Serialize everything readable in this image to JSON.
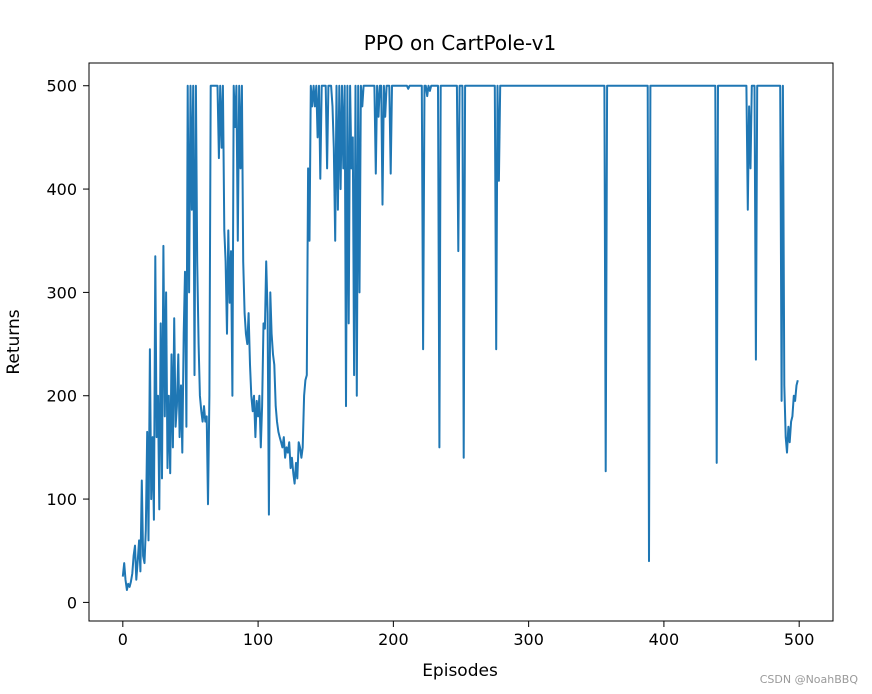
{
  "chart_data": {
    "type": "line",
    "title": "PPO on CartPole-v1",
    "xlabel": "Episodes",
    "ylabel": "Returns",
    "xlim": [
      -25,
      525
    ],
    "ylim": [
      -18,
      522
    ],
    "xticks": [
      0,
      100,
      200,
      300,
      400,
      500
    ],
    "yticks": [
      0,
      100,
      200,
      300,
      400,
      500
    ],
    "grid": false,
    "series": [
      {
        "color": "#1f77b4",
        "points": [
          [
            0,
            25
          ],
          [
            1,
            38
          ],
          [
            2,
            22
          ],
          [
            3,
            12
          ],
          [
            4,
            18
          ],
          [
            5,
            15
          ],
          [
            6,
            20
          ],
          [
            7,
            28
          ],
          [
            8,
            45
          ],
          [
            9,
            55
          ],
          [
            10,
            22
          ],
          [
            11,
            40
          ],
          [
            12,
            60
          ],
          [
            13,
            30
          ],
          [
            14,
            118
          ],
          [
            15,
            45
          ],
          [
            16,
            38
          ],
          [
            17,
            70
          ],
          [
            18,
            165
          ],
          [
            19,
            60
          ],
          [
            20,
            245
          ],
          [
            21,
            100
          ],
          [
            22,
            160
          ],
          [
            23,
            80
          ],
          [
            24,
            335
          ],
          [
            25,
            160
          ],
          [
            26,
            200
          ],
          [
            27,
            90
          ],
          [
            28,
            270
          ],
          [
            29,
            120
          ],
          [
            30,
            345
          ],
          [
            31,
            180
          ],
          [
            32,
            300
          ],
          [
            33,
            130
          ],
          [
            34,
            200
          ],
          [
            35,
            125
          ],
          [
            36,
            240
          ],
          [
            37,
            150
          ],
          [
            38,
            275
          ],
          [
            39,
            170
          ],
          [
            40,
            190
          ],
          [
            41,
            240
          ],
          [
            42,
            160
          ],
          [
            43,
            210
          ],
          [
            44,
            145
          ],
          [
            45,
            260
          ],
          [
            46,
            320
          ],
          [
            47,
            170
          ],
          [
            48,
            500
          ],
          [
            49,
            300
          ],
          [
            50,
            500
          ],
          [
            51,
            380
          ],
          [
            52,
            500
          ],
          [
            53,
            220
          ],
          [
            54,
            500
          ],
          [
            55,
            330
          ],
          [
            56,
            250
          ],
          [
            57,
            200
          ],
          [
            58,
            185
          ],
          [
            59,
            175
          ],
          [
            60,
            190
          ],
          [
            61,
            175
          ],
          [
            62,
            180
          ],
          [
            63,
            95
          ],
          [
            64,
            200
          ],
          [
            65,
            500
          ],
          [
            66,
            500
          ],
          [
            67,
            500
          ],
          [
            68,
            500
          ],
          [
            69,
            500
          ],
          [
            70,
            500
          ],
          [
            71,
            430
          ],
          [
            72,
            500
          ],
          [
            73,
            440
          ],
          [
            74,
            500
          ],
          [
            75,
            360
          ],
          [
            76,
            330
          ],
          [
            77,
            260
          ],
          [
            78,
            360
          ],
          [
            79,
            290
          ],
          [
            80,
            340
          ],
          [
            81,
            200
          ],
          [
            82,
            500
          ],
          [
            83,
            460
          ],
          [
            84,
            500
          ],
          [
            85,
            350
          ],
          [
            86,
            500
          ],
          [
            87,
            420
          ],
          [
            88,
            500
          ],
          [
            89,
            330
          ],
          [
            90,
            280
          ],
          [
            91,
            260
          ],
          [
            92,
            250
          ],
          [
            93,
            280
          ],
          [
            94,
            230
          ],
          [
            95,
            200
          ],
          [
            96,
            185
          ],
          [
            97,
            200
          ],
          [
            98,
            160
          ],
          [
            99,
            195
          ],
          [
            100,
            180
          ],
          [
            101,
            200
          ],
          [
            102,
            150
          ],
          [
            103,
            190
          ],
          [
            104,
            270
          ],
          [
            105,
            265
          ],
          [
            106,
            330
          ],
          [
            107,
            280
          ],
          [
            108,
            85
          ],
          [
            109,
            300
          ],
          [
            110,
            260
          ],
          [
            111,
            240
          ],
          [
            112,
            230
          ],
          [
            113,
            190
          ],
          [
            114,
            175
          ],
          [
            115,
            165
          ],
          [
            116,
            160
          ],
          [
            117,
            155
          ],
          [
            118,
            150
          ],
          [
            119,
            160
          ],
          [
            120,
            140
          ],
          [
            121,
            150
          ],
          [
            122,
            145
          ],
          [
            123,
            155
          ],
          [
            124,
            130
          ],
          [
            125,
            140
          ],
          [
            126,
            125
          ],
          [
            127,
            115
          ],
          [
            128,
            135
          ],
          [
            129,
            120
          ],
          [
            130,
            155
          ],
          [
            131,
            150
          ],
          [
            132,
            140
          ],
          [
            133,
            150
          ],
          [
            134,
            200
          ],
          [
            135,
            215
          ],
          [
            136,
            220
          ],
          [
            137,
            420
          ],
          [
            138,
            350
          ],
          [
            139,
            500
          ],
          [
            140,
            480
          ],
          [
            141,
            500
          ],
          [
            142,
            480
          ],
          [
            143,
            500
          ],
          [
            144,
            450
          ],
          [
            145,
            500
          ],
          [
            146,
            410
          ],
          [
            147,
            500
          ],
          [
            148,
            500
          ],
          [
            149,
            500
          ],
          [
            150,
            500
          ],
          [
            151,
            420
          ],
          [
            152,
            500
          ],
          [
            153,
            500
          ],
          [
            154,
            500
          ],
          [
            155,
            480
          ],
          [
            156,
            440
          ],
          [
            157,
            350
          ],
          [
            158,
            500
          ],
          [
            159,
            380
          ],
          [
            160,
            500
          ],
          [
            161,
            400
          ],
          [
            162,
            500
          ],
          [
            163,
            420
          ],
          [
            164,
            500
          ],
          [
            165,
            190
          ],
          [
            166,
            500
          ],
          [
            167,
            270
          ],
          [
            168,
            500
          ],
          [
            169,
            420
          ],
          [
            170,
            450
          ],
          [
            171,
            220
          ],
          [
            172,
            500
          ],
          [
            173,
            200
          ],
          [
            174,
            500
          ],
          [
            175,
            300
          ],
          [
            176,
            500
          ],
          [
            177,
            480
          ],
          [
            178,
            500
          ],
          [
            179,
            500
          ],
          [
            180,
            500
          ],
          [
            181,
            500
          ],
          [
            182,
            500
          ],
          [
            183,
            500
          ],
          [
            184,
            500
          ],
          [
            185,
            500
          ],
          [
            186,
            500
          ],
          [
            187,
            415
          ],
          [
            188,
            500
          ],
          [
            189,
            470
          ],
          [
            190,
            500
          ],
          [
            191,
            500
          ],
          [
            192,
            385
          ],
          [
            193,
            500
          ],
          [
            194,
            470
          ],
          [
            195,
            500
          ],
          [
            196,
            500
          ],
          [
            197,
            500
          ],
          [
            198,
            415
          ],
          [
            199,
            500
          ],
          [
            200,
            500
          ],
          [
            202,
            500
          ],
          [
            204,
            500
          ],
          [
            206,
            500
          ],
          [
            208,
            500
          ],
          [
            210,
            500
          ],
          [
            211,
            497
          ],
          [
            212,
            500
          ],
          [
            214,
            500
          ],
          [
            216,
            500
          ],
          [
            218,
            500
          ],
          [
            220,
            500
          ],
          [
            221,
            500
          ],
          [
            222,
            245
          ],
          [
            223,
            500
          ],
          [
            224,
            500
          ],
          [
            225,
            490
          ],
          [
            226,
            500
          ],
          [
            227,
            495
          ],
          [
            228,
            500
          ],
          [
            230,
            500
          ],
          [
            232,
            500
          ],
          [
            233,
            500
          ],
          [
            234,
            150
          ],
          [
            235,
            500
          ],
          [
            236,
            500
          ],
          [
            238,
            500
          ],
          [
            240,
            500
          ],
          [
            242,
            500
          ],
          [
            244,
            500
          ],
          [
            246,
            500
          ],
          [
            247,
            500
          ],
          [
            248,
            340
          ],
          [
            249,
            500
          ],
          [
            250,
            500
          ],
          [
            251,
            500
          ],
          [
            252,
            140
          ],
          [
            253,
            500
          ],
          [
            254,
            500
          ],
          [
            256,
            500
          ],
          [
            258,
            500
          ],
          [
            260,
            500
          ],
          [
            262,
            500
          ],
          [
            264,
            500
          ],
          [
            266,
            500
          ],
          [
            268,
            500
          ],
          [
            270,
            500
          ],
          [
            272,
            500
          ],
          [
            274,
            500
          ],
          [
            275,
            500
          ],
          [
            276,
            245
          ],
          [
            277,
            500
          ],
          [
            278,
            408
          ],
          [
            279,
            500
          ],
          [
            280,
            500
          ],
          [
            285,
            500
          ],
          [
            290,
            500
          ],
          [
            295,
            500
          ],
          [
            300,
            500
          ],
          [
            305,
            500
          ],
          [
            310,
            500
          ],
          [
            315,
            500
          ],
          [
            320,
            500
          ],
          [
            325,
            500
          ],
          [
            330,
            500
          ],
          [
            335,
            500
          ],
          [
            340,
            500
          ],
          [
            345,
            500
          ],
          [
            350,
            500
          ],
          [
            355,
            500
          ],
          [
            356,
            500
          ],
          [
            357,
            127
          ],
          [
            358,
            500
          ],
          [
            360,
            500
          ],
          [
            365,
            500
          ],
          [
            370,
            500
          ],
          [
            375,
            500
          ],
          [
            380,
            500
          ],
          [
            385,
            500
          ],
          [
            388,
            500
          ],
          [
            389,
            40
          ],
          [
            390,
            500
          ],
          [
            395,
            500
          ],
          [
            400,
            500
          ],
          [
            405,
            500
          ],
          [
            410,
            500
          ],
          [
            415,
            500
          ],
          [
            420,
            500
          ],
          [
            425,
            500
          ],
          [
            430,
            500
          ],
          [
            435,
            500
          ],
          [
            438,
            500
          ],
          [
            439,
            135
          ],
          [
            440,
            500
          ],
          [
            445,
            500
          ],
          [
            450,
            500
          ],
          [
            455,
            500
          ],
          [
            460,
            500
          ],
          [
            461,
            500
          ],
          [
            462,
            380
          ],
          [
            463,
            480
          ],
          [
            464,
            420
          ],
          [
            465,
            500
          ],
          [
            466,
            500
          ],
          [
            467,
            500
          ],
          [
            468,
            235
          ],
          [
            469,
            500
          ],
          [
            470,
            500
          ],
          [
            472,
            500
          ],
          [
            474,
            500
          ],
          [
            476,
            500
          ],
          [
            478,
            500
          ],
          [
            480,
            500
          ],
          [
            482,
            500
          ],
          [
            484,
            500
          ],
          [
            485,
            500
          ],
          [
            486,
            500
          ],
          [
            487,
            195
          ],
          [
            488,
            500
          ],
          [
            489,
            210
          ],
          [
            490,
            160
          ],
          [
            491,
            145
          ],
          [
            492,
            170
          ],
          [
            493,
            155
          ],
          [
            494,
            175
          ],
          [
            495,
            180
          ],
          [
            496,
            200
          ],
          [
            497,
            195
          ],
          [
            498,
            210
          ],
          [
            499,
            215
          ]
        ]
      }
    ]
  },
  "watermark": "CSDN @NoahBBQ"
}
